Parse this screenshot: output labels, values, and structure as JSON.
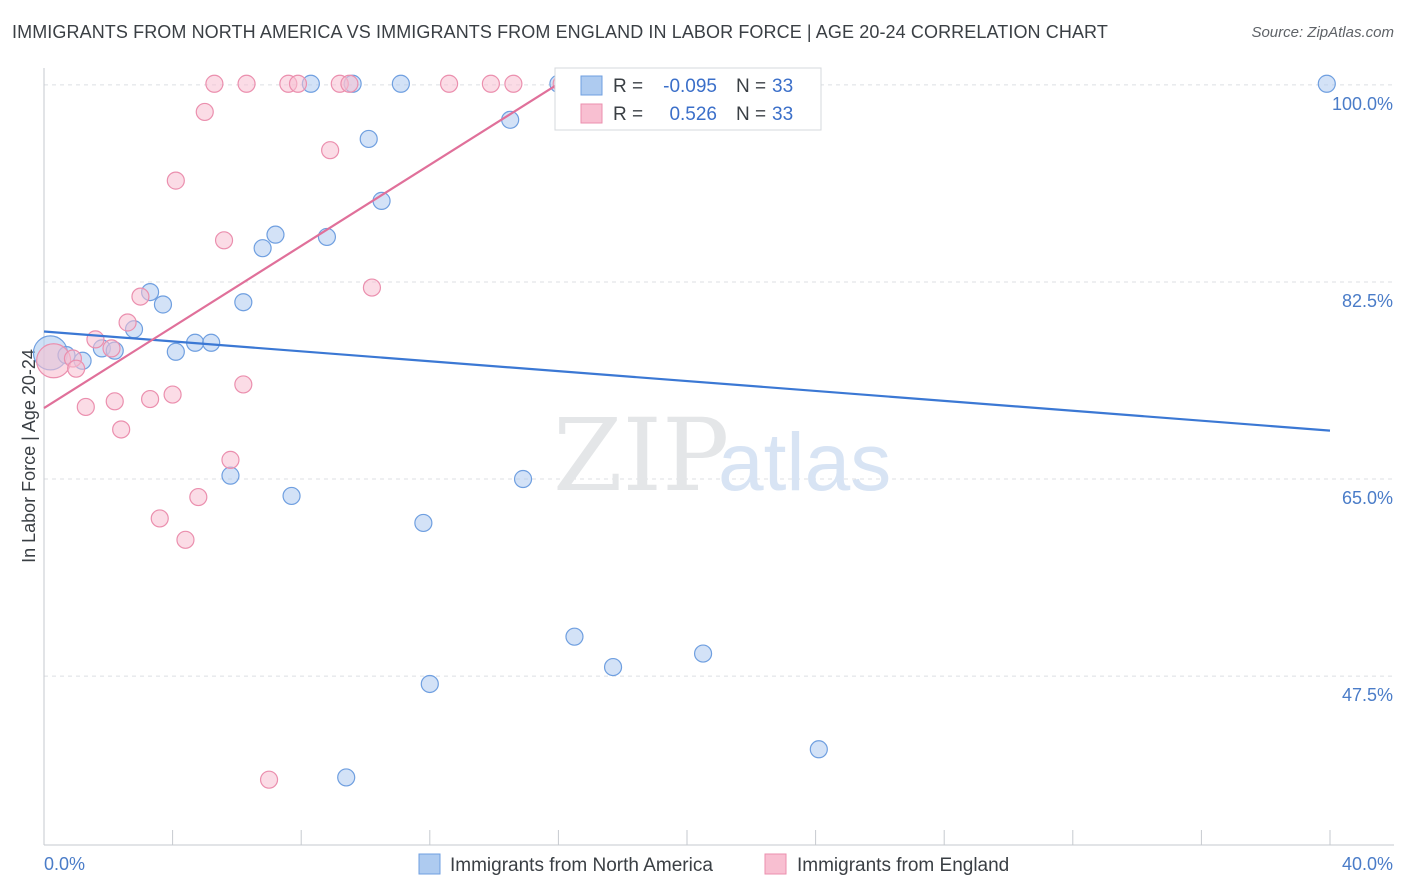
{
  "title": "IMMIGRANTS FROM NORTH AMERICA VS IMMIGRANTS FROM ENGLAND IN LABOR FORCE | AGE 20-24 CORRELATION CHART",
  "source": "Source: ZipAtlas.com",
  "watermark": {
    "zip": "ZIP",
    "atlas": "atlas"
  },
  "colors": {
    "series1_fill": "#aecbf0",
    "series1_stroke": "#6f9fe0",
    "series1_line": "#3b78d4",
    "series2_fill": "#f8bfd1",
    "series2_stroke": "#eb8fae",
    "series2_line": "#e0709a",
    "tick_text": "#4a7cc8",
    "grid": "#dcdfe3"
  },
  "stats_box": {
    "rows": [
      {
        "r_label": "R =",
        "r_value": "-0.095",
        "n_label": "N =",
        "n_value": "33"
      },
      {
        "r_label": "R =",
        "r_value": "0.526",
        "n_label": "N =",
        "n_value": "33"
      }
    ]
  },
  "chart_data": {
    "type": "scatter",
    "title": "IMMIGRANTS FROM NORTH AMERICA VS IMMIGRANTS FROM ENGLAND IN LABOR FORCE | AGE 20-24 CORRELATION CHART",
    "xlabel": "",
    "ylabel": "In Labor Force | Age 20-24",
    "xlim": [
      0,
      40
    ],
    "ylim": [
      32.5,
      101.5
    ],
    "x_tick_labels": [
      {
        "value": 0,
        "label": "0.0%"
      },
      {
        "value": 40,
        "label": "40.0%"
      }
    ],
    "y_tick_labels": [
      {
        "value": 100,
        "label": "100.0%"
      },
      {
        "value": 82.5,
        "label": "82.5%"
      },
      {
        "value": 65,
        "label": "65.0%"
      },
      {
        "value": 47.5,
        "label": "47.5%"
      }
    ],
    "x_minor_ticks": [
      0,
      4,
      8,
      12,
      16,
      20,
      24,
      28,
      32,
      36,
      40
    ],
    "grid": true,
    "legend_position": "bottom",
    "series": [
      {
        "name": "Immigrants from North America",
        "trend": {
          "x": [
            0,
            40
          ],
          "y": [
            78.1,
            69.3
          ]
        },
        "points": [
          {
            "x": 0.2,
            "y": 76.2,
            "big": true
          },
          {
            "x": 0.7,
            "y": 76.0
          },
          {
            "x": 1.2,
            "y": 75.5
          },
          {
            "x": 1.8,
            "y": 76.6
          },
          {
            "x": 2.2,
            "y": 76.4
          },
          {
            "x": 2.8,
            "y": 78.3
          },
          {
            "x": 3.3,
            "y": 81.6
          },
          {
            "x": 3.7,
            "y": 80.5
          },
          {
            "x": 4.1,
            "y": 76.3
          },
          {
            "x": 4.7,
            "y": 77.1
          },
          {
            "x": 5.2,
            "y": 77.1
          },
          {
            "x": 5.8,
            "y": 65.3
          },
          {
            "x": 6.2,
            "y": 80.7
          },
          {
            "x": 6.8,
            "y": 85.5
          },
          {
            "x": 7.2,
            "y": 86.7
          },
          {
            "x": 7.7,
            "y": 63.5
          },
          {
            "x": 8.3,
            "y": 100.1
          },
          {
            "x": 8.8,
            "y": 86.5
          },
          {
            "x": 9.4,
            "y": 38.5
          },
          {
            "x": 9.6,
            "y": 100.1
          },
          {
            "x": 10.1,
            "y": 95.2
          },
          {
            "x": 10.5,
            "y": 89.7
          },
          {
            "x": 11.1,
            "y": 100.1
          },
          {
            "x": 11.8,
            "y": 61.1
          },
          {
            "x": 12.0,
            "y": 46.8
          },
          {
            "x": 14.9,
            "y": 65.0
          },
          {
            "x": 14.5,
            "y": 96.9
          },
          {
            "x": 16.0,
            "y": 100.1
          },
          {
            "x": 16.5,
            "y": 51.0
          },
          {
            "x": 17.7,
            "y": 48.3
          },
          {
            "x": 20.5,
            "y": 49.5
          },
          {
            "x": 24.1,
            "y": 41.0
          },
          {
            "x": 39.9,
            "y": 100.1
          }
        ]
      },
      {
        "name": "Immigrants from England",
        "trend": {
          "x": [
            0,
            16.0
          ],
          "y": [
            71.3,
            100.1
          ]
        },
        "points": [
          {
            "x": 0.3,
            "y": 75.5,
            "big": true
          },
          {
            "x": 0.9,
            "y": 75.7
          },
          {
            "x": 1.0,
            "y": 74.8
          },
          {
            "x": 1.3,
            "y": 71.4
          },
          {
            "x": 1.6,
            "y": 77.4
          },
          {
            "x": 2.1,
            "y": 76.6
          },
          {
            "x": 2.2,
            "y": 71.9
          },
          {
            "x": 2.4,
            "y": 69.4
          },
          {
            "x": 2.6,
            "y": 78.9
          },
          {
            "x": 3.0,
            "y": 81.2
          },
          {
            "x": 3.3,
            "y": 72.1
          },
          {
            "x": 3.6,
            "y": 61.5
          },
          {
            "x": 4.0,
            "y": 72.5
          },
          {
            "x": 4.1,
            "y": 91.5
          },
          {
            "x": 4.4,
            "y": 59.6
          },
          {
            "x": 4.8,
            "y": 63.4
          },
          {
            "x": 5.0,
            "y": 97.6
          },
          {
            "x": 5.3,
            "y": 100.1
          },
          {
            "x": 5.6,
            "y": 86.2
          },
          {
            "x": 5.8,
            "y": 66.7
          },
          {
            "x": 6.2,
            "y": 73.4
          },
          {
            "x": 6.3,
            "y": 100.1
          },
          {
            "x": 7.0,
            "y": 38.3
          },
          {
            "x": 7.6,
            "y": 100.1
          },
          {
            "x": 7.9,
            "y": 100.1
          },
          {
            "x": 8.9,
            "y": 94.2
          },
          {
            "x": 9.2,
            "y": 100.1
          },
          {
            "x": 9.5,
            "y": 100.1
          },
          {
            "x": 10.2,
            "y": 82.0
          },
          {
            "x": 12.6,
            "y": 100.1
          },
          {
            "x": 13.9,
            "y": 100.1
          },
          {
            "x": 14.6,
            "y": 100.1
          },
          {
            "x": 16.1,
            "y": 100.1
          }
        ]
      }
    ]
  }
}
